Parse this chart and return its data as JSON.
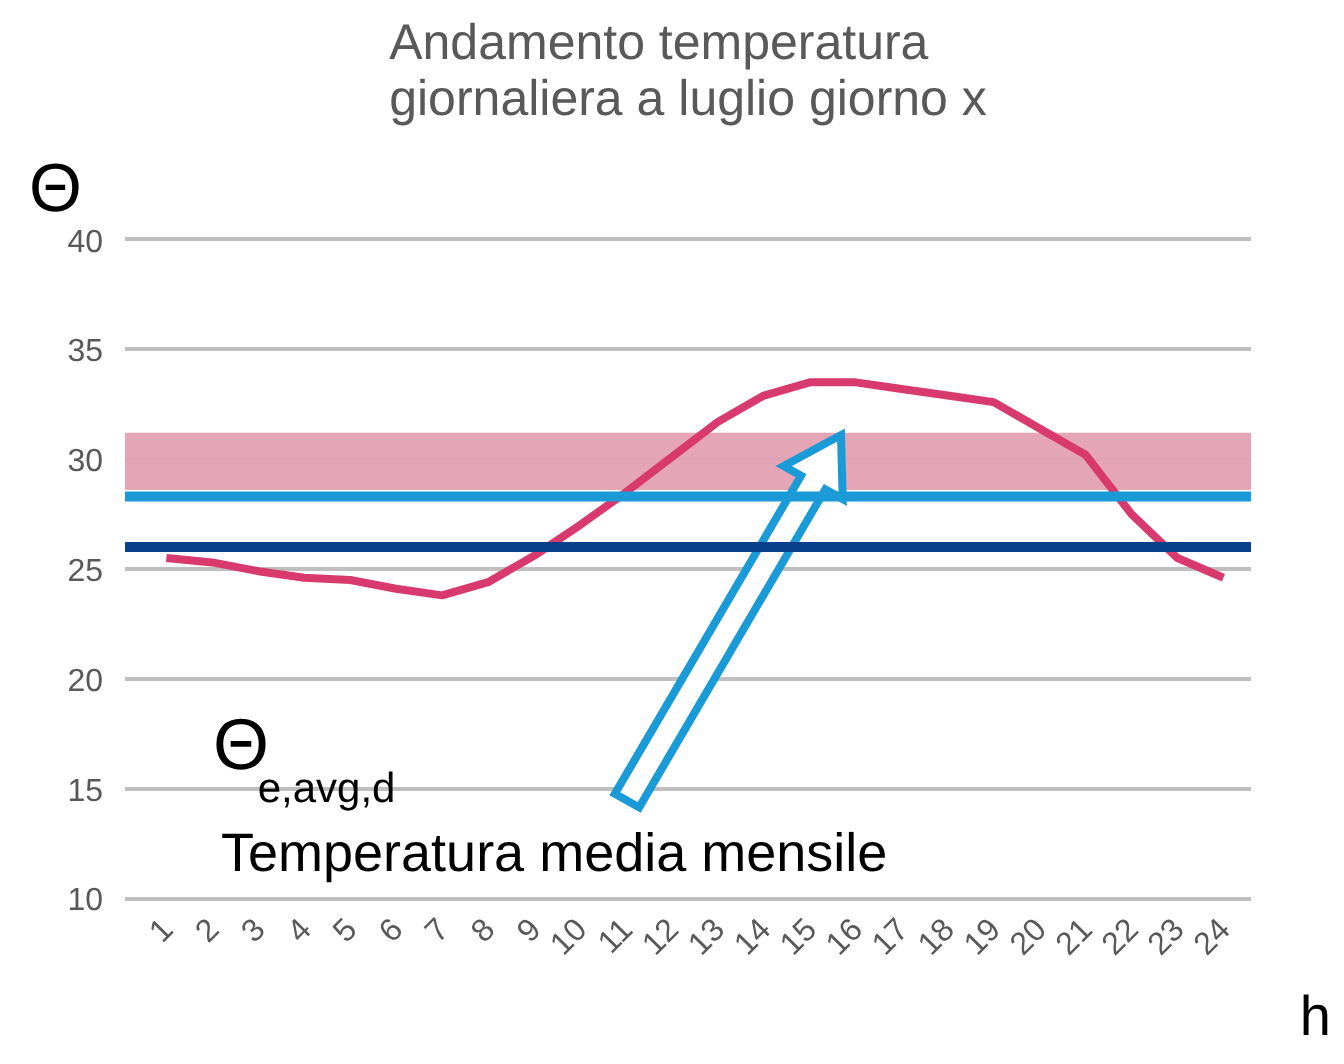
{
  "chart_data": {
    "type": "line",
    "title": "Andamento temperatura\ngiornaliera a luglio giorno x",
    "ylabel": "Θ",
    "xlabel": "h",
    "categories": [
      "1",
      "2",
      "3",
      "4",
      "5",
      "6",
      "7",
      "8",
      "9",
      "10",
      "11",
      "12",
      "13",
      "14",
      "15",
      "16",
      "17",
      "18",
      "19",
      "20",
      "21",
      "22",
      "23",
      "24"
    ],
    "series": [
      {
        "color": "#d93a6e",
        "values": [
          25.5,
          25.3,
          24.9,
          24.6,
          24.5,
          24.1,
          23.8,
          24.4,
          25.6,
          27.0,
          28.5,
          30.1,
          31.7,
          32.9,
          33.5,
          33.5,
          33.2,
          32.9,
          32.6,
          31.4,
          30.2,
          27.5,
          25.5,
          24.6
        ]
      }
    ],
    "ylim": [
      10,
      40
    ],
    "yticks": [
      10,
      15,
      20,
      25,
      30,
      35,
      40
    ],
    "grid": "y",
    "ref_lines": [
      {
        "axis": "y",
        "value": 28.3,
        "color": "#1a9ad6"
      },
      {
        "axis": "y",
        "value": 26.0,
        "color": "#0a3f8c"
      }
    ],
    "bands": [
      {
        "axis": "y",
        "from": 28.6,
        "to": 31.2,
        "color": "#e3a0b2"
      }
    ],
    "annotations": [
      "Θ$_{e,avg,d}$",
      "Temperatura media mensile"
    ]
  }
}
